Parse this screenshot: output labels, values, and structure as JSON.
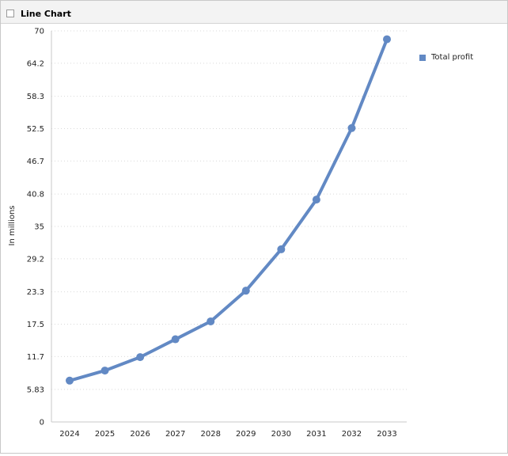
{
  "window": {
    "title": "Line Chart"
  },
  "colors": {
    "series": "#6289c4",
    "grid": "#d9d9d9",
    "axis": "#c8c8c8"
  },
  "chart_data": {
    "type": "line",
    "title": "",
    "xlabel": "",
    "ylabel": "In millions",
    "ylim": [
      0,
      70
    ],
    "y_ticks": [
      "0",
      "5.83",
      "11.7",
      "17.5",
      "23.3",
      "29.2",
      "35",
      "40.8",
      "46.7",
      "52.5",
      "58.3",
      "64.2",
      "70"
    ],
    "categories": [
      "2024",
      "2025",
      "2026",
      "2027",
      "2028",
      "2029",
      "2030",
      "2031",
      "2032",
      "2033"
    ],
    "series": [
      {
        "name": "Total profit",
        "values": [
          7.4,
          9.2,
          11.6,
          14.8,
          18.0,
          23.5,
          30.9,
          39.8,
          52.6,
          68.5
        ]
      }
    ],
    "grid": true,
    "legend": "top-right"
  }
}
